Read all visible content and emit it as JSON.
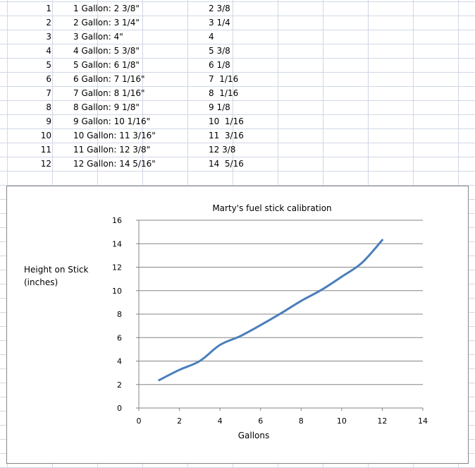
{
  "sheet": {
    "rows": [
      {
        "n": "1",
        "label": "1 Gallon: 2 3/8\"",
        "stick": "2 3/8"
      },
      {
        "n": "2",
        "label": "2 Gallon: 3 1/4\"",
        "stick": "3 1/4"
      },
      {
        "n": "3",
        "label": "3 Gallon: 4\"",
        "stick": "4"
      },
      {
        "n": "4",
        "label": "4 Gallon: 5 3/8\"",
        "stick": "5 3/8"
      },
      {
        "n": "5",
        "label": "5 Gallon: 6 1/8\"",
        "stick": "6 1/8"
      },
      {
        "n": "6",
        "label": "6 Gallon: 7 1/16\"",
        "stick": "7  1/16"
      },
      {
        "n": "7",
        "label": "7 Gallon: 8 1/16\"",
        "stick": "8  1/16"
      },
      {
        "n": "8",
        "label": "8 Gallon: 9 1/8\"",
        "stick": "9 1/8"
      },
      {
        "n": "9",
        "label": "9 Gallon: 10 1/16\"",
        "stick": "10  1/16"
      },
      {
        "n": "10",
        "label": "10 Gallon: 11 3/16\"",
        "stick": "11  3/16"
      },
      {
        "n": "11",
        "label": "11 Gallon: 12 3/8\"",
        "stick": "12 3/8"
      },
      {
        "n": "12",
        "label": "12 Gallon: 14 5/16\"",
        "stick": "14  5/16"
      }
    ]
  },
  "chart_data": {
    "type": "line",
    "title": "Marty's fuel stick calibration",
    "xlabel": "Gallons",
    "ylabel": "Height on Stick\n(inches)",
    "xlim": [
      0,
      14
    ],
    "ylim": [
      0,
      16
    ],
    "x_ticks": [
      0,
      2,
      4,
      6,
      8,
      10,
      12,
      14
    ],
    "y_ticks": [
      0,
      2,
      4,
      6,
      8,
      10,
      12,
      14,
      16
    ],
    "grid": "horizontal",
    "legend": "none",
    "series": [
      {
        "color": "#4a7ebb",
        "x": [
          1,
          2,
          3,
          4,
          5,
          6,
          7,
          8,
          9,
          10,
          11,
          12
        ],
        "y": [
          2.375,
          3.25,
          4,
          5.375,
          6.125,
          7.0625,
          8.0625,
          9.125,
          10.0625,
          11.1875,
          12.375,
          14.3125
        ]
      }
    ]
  }
}
